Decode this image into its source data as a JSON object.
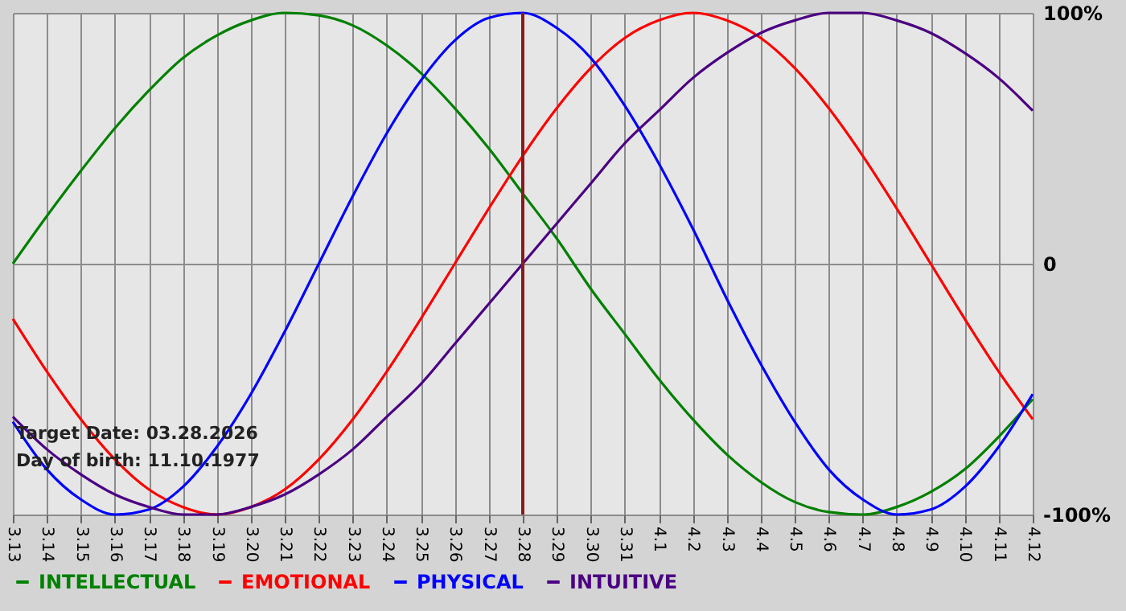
{
  "chart_data": {
    "type": "line",
    "categories": [
      "3.13",
      "3.14",
      "3.15",
      "3.16",
      "3.17",
      "3.18",
      "3.19",
      "3.20",
      "3.21",
      "3.22",
      "3.23",
      "3.24",
      "3.25",
      "3.26",
      "3.27",
      "3.28",
      "3.29",
      "3.30",
      "3.31",
      "4.1",
      "4.2",
      "4.3",
      "4.4",
      "4.5",
      "4.6",
      "4.7",
      "4.8",
      "4.9",
      "4.10",
      "4.11",
      "4.12"
    ],
    "series": [
      {
        "name": "INTELLECTUAL",
        "color": "#008000",
        "values": [
          0,
          19,
          37,
          54,
          69,
          82,
          91,
          97,
          100,
          99,
          95,
          87,
          76,
          62,
          46,
          28,
          10,
          -10,
          -28,
          -46,
          -62,
          -76,
          -87,
          -95,
          -99,
          -100,
          -97,
          -91,
          -82,
          -69,
          -54
        ]
      },
      {
        "name": "EMOTIONAL",
        "color": "#ff0000",
        "values": [
          -22,
          -43,
          -62,
          -78,
          -90,
          -97,
          -100,
          -97,
          -90,
          -78,
          -62,
          -43,
          -22,
          0,
          22,
          43,
          62,
          78,
          90,
          97,
          100,
          97,
          90,
          78,
          62,
          43,
          22,
          0,
          -22,
          -43,
          -62
        ]
      },
      {
        "name": "PHYSICAL",
        "color": "#0000ff",
        "values": [
          -63,
          -82,
          -94,
          -100,
          -98,
          -89,
          -73,
          -52,
          -27,
          0,
          27,
          52,
          73,
          89,
          98,
          100,
          94,
          82,
          63,
          40,
          14,
          -14,
          -40,
          -63,
          -82,
          -94,
          -100,
          -98,
          -89,
          -73,
          -52
        ]
      },
      {
        "name": "INTUITIVE",
        "color": "#4b0082",
        "values": [
          -61,
          -74,
          -84,
          -92,
          -97,
          -100,
          -100,
          -97,
          -92,
          -84,
          -74,
          -61,
          -48,
          -32,
          -16,
          0,
          16,
          32,
          48,
          61,
          74,
          84,
          92,
          97,
          100,
          100,
          97,
          92,
          84,
          74,
          61
        ]
      }
    ],
    "ylim": [
      -100,
      100
    ],
    "yticks": [
      {
        "value": 100,
        "label": "100%"
      },
      0,
      {
        "value": -100,
        "label": "-100%"
      }
    ],
    "grid": true,
    "legend": "bottom",
    "ref_lines": [
      {
        "axis": "x",
        "value": "3.28",
        "color": "#8b1a1a"
      }
    ],
    "annotations": [
      "Target Date: 03.28.2026",
      "Day of birth: 11.10.1977"
    ]
  }
}
